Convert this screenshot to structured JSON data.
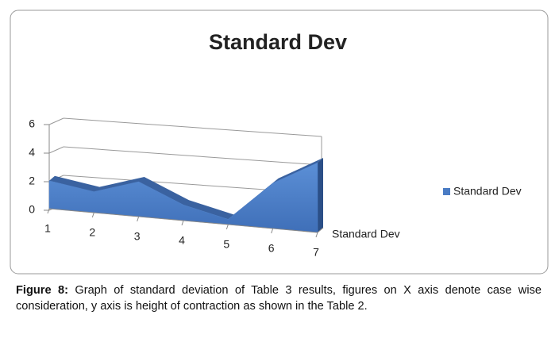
{
  "chart_data": {
    "type": "area3d",
    "title": "Standard Dev",
    "categories": [
      "1",
      "2",
      "3",
      "4",
      "5",
      "6",
      "7"
    ],
    "series": [
      {
        "name": "Standard Dev",
        "color": "#4a7cc4",
        "values": [
          1.6,
          1.2,
          2.0,
          0.9,
          0.3,
          2.6,
          4.0
        ]
      }
    ],
    "depth_label": "Standard Dev",
    "ylim": [
      0,
      6
    ],
    "yticks": [
      0,
      2,
      4,
      6
    ],
    "grid": true,
    "legend": "right"
  },
  "caption": {
    "label": "Figure 8:",
    "text": "Graph of standard deviation of Table 3 results, figures on X axis denote case wise consideration, y axis is height of contraction as shown in the Table 2."
  }
}
